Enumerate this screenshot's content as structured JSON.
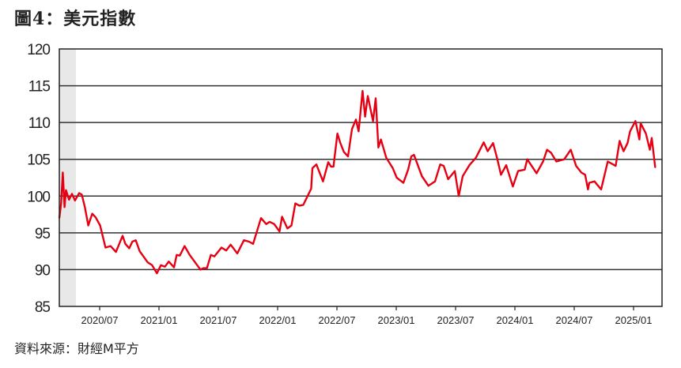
{
  "title": "圖4：美元指數",
  "source": "資料來源：財經M平方",
  "chart_data": {
    "type": "line",
    "title": "美元指數",
    "xlabel": "",
    "ylabel": "",
    "x_unit": "months since 2020/01",
    "xlim": [
      1.9,
      63
    ],
    "ylim": [
      85,
      120
    ],
    "yticks": [
      85,
      90,
      95,
      100,
      105,
      110,
      115,
      120
    ],
    "xticks": [
      {
        "x": 6,
        "label": "2020/07"
      },
      {
        "x": 12,
        "label": "2021/01"
      },
      {
        "x": 18,
        "label": "2021/07"
      },
      {
        "x": 24,
        "label": "2022/01"
      },
      {
        "x": 30,
        "label": "2022/07"
      },
      {
        "x": 36,
        "label": "2023/01"
      },
      {
        "x": 42,
        "label": "2023/07"
      },
      {
        "x": 48,
        "label": "2024/01"
      },
      {
        "x": 54,
        "label": "2024/07"
      },
      {
        "x": 60,
        "label": "2025/01"
      }
    ],
    "grid": true,
    "shaded_region": {
      "x": [
        1.9,
        3.6
      ],
      "color": "#e8e8e8"
    },
    "series": [
      {
        "name": "美元指數",
        "color": "#e60012",
        "points": [
          [
            1.92,
            97
          ],
          [
            2.1,
            99
          ],
          [
            2.27,
            103.2
          ],
          [
            2.45,
            98.5
          ],
          [
            2.59,
            100.8
          ],
          [
            2.9,
            99.5
          ],
          [
            3.2,
            100.3
          ],
          [
            3.5,
            99.4
          ],
          [
            3.92,
            100.4
          ],
          [
            4.19,
            100.2
          ],
          [
            4.5,
            98.5
          ],
          [
            4.85,
            96
          ],
          [
            5.25,
            97.6
          ],
          [
            5.6,
            97.1
          ],
          [
            6.05,
            96
          ],
          [
            6.59,
            93
          ],
          [
            7.1,
            93.2
          ],
          [
            7.65,
            92.4
          ],
          [
            8.32,
            94.6
          ],
          [
            8.6,
            93.5
          ],
          [
            8.99,
            92.9
          ],
          [
            9.3,
            93.8
          ],
          [
            9.65,
            94
          ],
          [
            10.05,
            92.5
          ],
          [
            10.85,
            91
          ],
          [
            11.3,
            90.6
          ],
          [
            11.79,
            89.5
          ],
          [
            12.19,
            90.6
          ],
          [
            12.6,
            90.4
          ],
          [
            12.99,
            91.1
          ],
          [
            13.52,
            90.3
          ],
          [
            13.79,
            92
          ],
          [
            14.1,
            91.9
          ],
          [
            14.59,
            93.2
          ],
          [
            15.1,
            92
          ],
          [
            15.65,
            91
          ],
          [
            16.19,
            90
          ],
          [
            16.5,
            90.2
          ],
          [
            16.85,
            90.2
          ],
          [
            17.25,
            92
          ],
          [
            17.6,
            91.8
          ],
          [
            18.32,
            93
          ],
          [
            18.8,
            92.6
          ],
          [
            19.25,
            93.4
          ],
          [
            19.92,
            92.2
          ],
          [
            20.59,
            94
          ],
          [
            21.1,
            93.8
          ],
          [
            21.52,
            93.5
          ],
          [
            22.32,
            97
          ],
          [
            22.85,
            96.2
          ],
          [
            23.2,
            96.5
          ],
          [
            23.65,
            96.2
          ],
          [
            24.19,
            95.2
          ],
          [
            24.45,
            97.2
          ],
          [
            24.99,
            95.6
          ],
          [
            25.4,
            96
          ],
          [
            25.79,
            99
          ],
          [
            26.2,
            98.7
          ],
          [
            26.59,
            98.8
          ],
          [
            27.39,
            101
          ],
          [
            27.52,
            103.8
          ],
          [
            27.92,
            104.3
          ],
          [
            28.59,
            102
          ],
          [
            29.12,
            104.6
          ],
          [
            29.4,
            104
          ],
          [
            29.65,
            104
          ],
          [
            30.05,
            108.5
          ],
          [
            30.32,
            107.3
          ],
          [
            30.7,
            106
          ],
          [
            31.12,
            105.4
          ],
          [
            31.52,
            109.1
          ],
          [
            31.92,
            110.4
          ],
          [
            32.19,
            108.8
          ],
          [
            32.59,
            114.3
          ],
          [
            32.85,
            110.8
          ],
          [
            33.12,
            113.6
          ],
          [
            33.65,
            110.2
          ],
          [
            33.92,
            113.3
          ],
          [
            34.19,
            106.6
          ],
          [
            34.45,
            107.7
          ],
          [
            34.99,
            105.2
          ],
          [
            35.65,
            103.8
          ],
          [
            36.05,
            102.5
          ],
          [
            36.72,
            101.8
          ],
          [
            37.2,
            103.6
          ],
          [
            37.52,
            105.4
          ],
          [
            37.79,
            105.6
          ],
          [
            38.59,
            102.7
          ],
          [
            39.25,
            101.4
          ],
          [
            39.92,
            102
          ],
          [
            40.45,
            104.3
          ],
          [
            40.8,
            104.1
          ],
          [
            41.25,
            102.3
          ],
          [
            41.92,
            103.4
          ],
          [
            42.32,
            100
          ],
          [
            42.72,
            102.7
          ],
          [
            43.39,
            104.2
          ],
          [
            44.05,
            105.2
          ],
          [
            44.85,
            107.3
          ],
          [
            45.25,
            106.1
          ],
          [
            45.79,
            107.2
          ],
          [
            46.19,
            105.2
          ],
          [
            46.59,
            102.9
          ],
          [
            47.12,
            104.2
          ],
          [
            47.79,
            101.3
          ],
          [
            48.32,
            103.4
          ],
          [
            48.99,
            103.6
          ],
          [
            49.25,
            105
          ],
          [
            50.19,
            103.1
          ],
          [
            50.85,
            104.7
          ],
          [
            51.25,
            106.3
          ],
          [
            51.65,
            105.9
          ],
          [
            52.19,
            104.7
          ],
          [
            52.99,
            105
          ],
          [
            53.65,
            106.3
          ],
          [
            54.19,
            104.1
          ],
          [
            54.72,
            103.2
          ],
          [
            55.1,
            102.9
          ],
          [
            55.39,
            100.9
          ],
          [
            55.52,
            101.8
          ],
          [
            56.05,
            102
          ],
          [
            56.72,
            100.9
          ],
          [
            57.39,
            104.7
          ],
          [
            58.19,
            104.1
          ],
          [
            58.59,
            107.5
          ],
          [
            58.99,
            106.1
          ],
          [
            59.39,
            107.2
          ],
          [
            59.65,
            108.8
          ],
          [
            60.19,
            110.2
          ],
          [
            60.59,
            107.7
          ],
          [
            60.72,
            109.9
          ],
          [
            61.25,
            108.5
          ],
          [
            61.65,
            106.3
          ],
          [
            61.84,
            107.9
          ],
          [
            62.19,
            103.9
          ]
        ]
      }
    ]
  }
}
